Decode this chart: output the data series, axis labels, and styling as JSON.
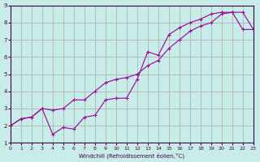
{
  "xlabel": "Windchill (Refroidissement éolien,°C)",
  "background_color": "#c8ece8",
  "grid_color": "#aaaaaa",
  "line_color": "#990099",
  "xlim": [
    0,
    23
  ],
  "ylim": [
    1,
    9
  ],
  "xticks": [
    0,
    1,
    2,
    3,
    4,
    5,
    6,
    7,
    8,
    9,
    10,
    11,
    12,
    13,
    14,
    15,
    16,
    17,
    18,
    19,
    20,
    21,
    22,
    23
  ],
  "yticks": [
    1,
    2,
    3,
    4,
    5,
    6,
    7,
    8,
    9
  ],
  "line1_x": [
    0,
    1,
    2,
    3,
    4,
    5,
    6,
    7,
    8,
    9,
    10,
    11,
    12,
    13,
    14,
    15,
    16,
    17,
    18,
    19,
    20,
    21,
    22,
    23
  ],
  "line1_y": [
    2.0,
    2.4,
    2.5,
    3.0,
    1.5,
    1.9,
    1.8,
    2.5,
    2.6,
    3.5,
    3.6,
    3.6,
    4.7,
    6.3,
    6.1,
    7.3,
    7.7,
    8.0,
    8.2,
    8.5,
    8.6,
    8.6,
    7.6,
    7.6
  ],
  "line2_x": [
    0,
    1,
    2,
    3,
    4,
    5,
    6,
    7,
    8,
    9,
    10,
    11,
    12,
    13,
    14,
    15,
    16,
    17,
    18,
    19,
    20,
    21,
    22,
    23
  ],
  "line2_y": [
    2.0,
    2.4,
    2.5,
    3.0,
    2.9,
    3.0,
    3.5,
    3.5,
    4.0,
    4.5,
    4.7,
    4.8,
    5.0,
    5.5,
    5.8,
    6.5,
    7.0,
    7.5,
    7.8,
    8.0,
    8.5,
    8.6,
    8.6,
    7.6
  ]
}
